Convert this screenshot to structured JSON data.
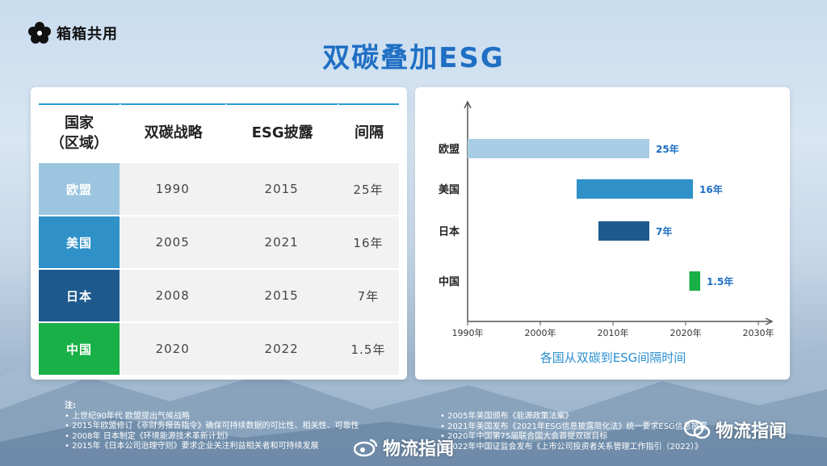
{
  "brand": {
    "logo_text": "箱箱共用"
  },
  "title": "双碳叠加ESG",
  "table": {
    "headers": [
      "国家\n（区域）",
      "双碳战略",
      "ESG披露",
      "间隔"
    ],
    "rows": [
      {
        "region": "欧盟",
        "carbon": "1990",
        "esg": "2015",
        "gap": "25年",
        "color": "#9cc6df"
      },
      {
        "region": "美国",
        "carbon": "2005",
        "esg": "2021",
        "gap": "16年",
        "color": "#2f91c8"
      },
      {
        "region": "日本",
        "carbon": "2008",
        "esg": "2015",
        "gap": "7年",
        "color": "#1e5a8e"
      },
      {
        "region": "中国",
        "carbon": "2020",
        "esg": "2022",
        "gap": "1.5年",
        "color": "#19b047"
      }
    ]
  },
  "chart_data": {
    "type": "bar",
    "orientation": "horizontal-range",
    "title": "各国从双碳到ESG间隔时间",
    "categories": [
      "欧盟",
      "美国",
      "日本",
      "中国"
    ],
    "start": [
      1990,
      2005,
      2008,
      2020.5
    ],
    "end": [
      2015,
      2021,
      2015,
      2022
    ],
    "labels": [
      "25年",
      "16年",
      "7年",
      "1.5年"
    ],
    "colors": [
      "#a9cde4",
      "#2f91c8",
      "#1e5a8e",
      "#19b047"
    ],
    "xticks": [
      "1990年",
      "2000年",
      "2010年",
      "2020年",
      "2030年"
    ],
    "xtick_values": [
      1990,
      2000,
      2010,
      2020,
      2030
    ],
    "xlim": [
      1990,
      2030
    ],
    "grid": false
  },
  "notes": {
    "heading": "注:",
    "left": [
      "上世纪90年代 欧盟提出气候战略",
      "2015年欧盟修订《非财务报告指令》确保可持续数据的可比性、相关性、可靠性",
      "2008年 日本制定《环境能源技术革新计划》",
      "2015年《日本公司治理守则》要求企业关注利益相关者和可持续发展"
    ],
    "right": [
      "2005年美国颁布《能源政策法案》",
      "2021年美国发布《2021年ESG信息披露简化法》统一要求ESG信息披露",
      "2020年中国第75届联合国大会首提双碳目标",
      "2022年中国证监会发布《上市公司投资者关系管理工作指引（2022）》"
    ]
  },
  "watermarks": [
    "物流指闻",
    "物流指闻"
  ]
}
